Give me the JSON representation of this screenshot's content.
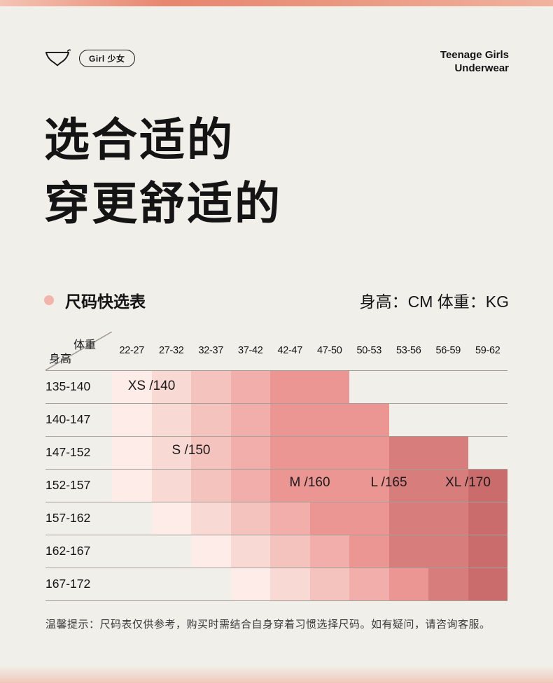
{
  "page": {
    "background": "#f1efe9",
    "top_bar_colors": [
      "#f4c4b4",
      "#e8866f",
      "#ea967f",
      "#f1b29e"
    ],
    "accent_dot_color": "#f2b4ab"
  },
  "header": {
    "badge_label": "Girl 少女",
    "brand_line1": "Teenage Girls",
    "brand_line2": "Underwear"
  },
  "title": {
    "line1": "选合适的",
    "line2": "穿更舒适的"
  },
  "section": {
    "table_title": "尺码快选表",
    "units_label": "身高：CM 体重：KG"
  },
  "size_table": {
    "corner": {
      "top_right": "体重",
      "bottom_left": "身高"
    },
    "weight_columns": [
      "22-27",
      "27-32",
      "32-37",
      "37-42",
      "42-47",
      "47-50",
      "50-53",
      "53-56",
      "56-59",
      "59-62"
    ],
    "height_rows": [
      "135-140",
      "140-147",
      "147-152",
      "152-157",
      "157-162",
      "162-167",
      "167-172"
    ],
    "shade_palette": [
      "",
      "#fdece8",
      "#f9d9d3",
      "#f5c3bd",
      "#f1aeaa",
      "#eb9693",
      "#d77e7d",
      "#ca6c6b"
    ],
    "shade_matrix": [
      [
        1,
        2,
        3,
        4,
        5,
        5,
        0,
        0,
        0,
        0
      ],
      [
        1,
        2,
        3,
        4,
        5,
        5,
        5,
        0,
        0,
        0
      ],
      [
        1,
        2,
        3,
        4,
        5,
        5,
        5,
        6,
        6,
        0
      ],
      [
        1,
        2,
        3,
        4,
        5,
        5,
        5,
        6,
        6,
        7
      ],
      [
        0,
        1,
        2,
        3,
        4,
        5,
        5,
        6,
        6,
        7
      ],
      [
        0,
        0,
        1,
        2,
        3,
        4,
        5,
        6,
        6,
        7
      ],
      [
        0,
        0,
        0,
        1,
        2,
        3,
        4,
        5,
        6,
        7
      ]
    ],
    "size_labels": [
      {
        "text": "XS /140",
        "row": 1,
        "boundary": 1
      },
      {
        "text": "S /150",
        "row": 3,
        "boundary": 2
      },
      {
        "text": "M /160",
        "row": 4,
        "boundary": 5
      },
      {
        "text": "L /165",
        "row": 4,
        "boundary": 7
      },
      {
        "text": "XL /170",
        "row": 4,
        "boundary": 9
      }
    ],
    "line_color": "#a3a099"
  },
  "footer": {
    "note": "温馨提示：尺码表仅供参考，购买时需结合自身穿着习惯选择尺码。如有疑问，请咨询客服。"
  }
}
